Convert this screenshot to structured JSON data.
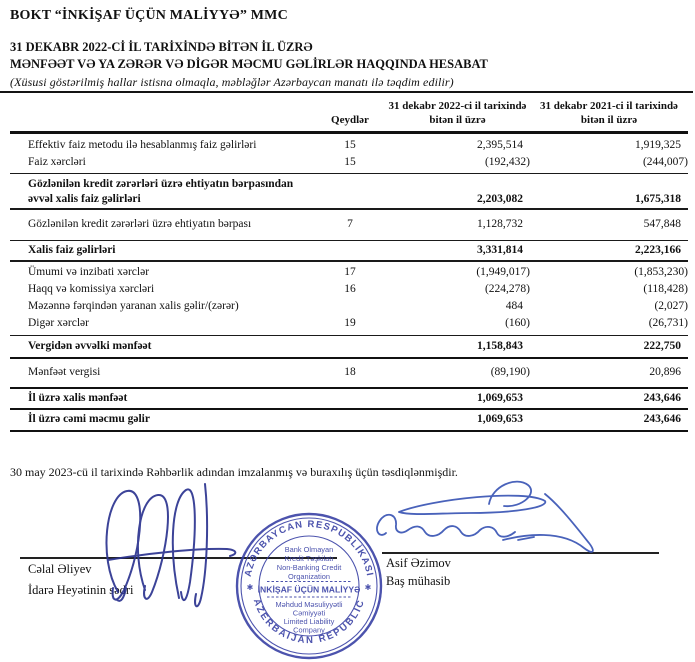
{
  "page": {
    "company": "BOKT “İNKİŞAF ÜÇÜN MALİYYƏ” MMC",
    "title_line1": "31 DEKABR 2022-Cİ İL TARİXİNDƏ BİTƏN İL ÜZRƏ",
    "title_line2": "MƏNFƏƏT VƏ YA ZƏRƏR VƏ DİGƏR MƏCMU GƏLİRLƏR HAQQINDA HESABAT",
    "note": "(Xüsusi göstərilmiş hallar istisna olmaqla, məbləğlər Azərbaycan manatı ilə təqdim edilir)"
  },
  "table": {
    "headers": {
      "notes": "Qeydlər",
      "y2022": "31 dekabr 2022-ci il tarixində bitən il üzrə",
      "y2021": "31 dekabr 2021-ci il tarixində bitən il üzrə"
    },
    "rows": [
      {
        "label": "Effektiv faiz metodu ilə hesablanmış faiz gəlirləri",
        "note": "15",
        "v2022": "2,395,514",
        "v2021": "1,919,325",
        "bold": false,
        "rule_after": false
      },
      {
        "label": "Faiz xərcləri",
        "note": "15",
        "v2022": "(192,432)",
        "v2021": "(244,007)",
        "bold": false,
        "rule_after": true
      },
      {
        "label": "Gözlənilən kredit zərərləri üzrə ehtiyatın bərpasından əvvəl xalis faiz gəlirləri",
        "note": "",
        "v2022": "2,203,082",
        "v2021": "1,675,318",
        "bold": true,
        "rule_after": true
      },
      {
        "label": "Gözlənilən kredit zərərləri üzrə ehtiyatın bərpası",
        "note": "7",
        "v2022": "1,128,732",
        "v2021": "547,848",
        "bold": false,
        "rule_after": true
      },
      {
        "label": "Xalis faiz gəlirləri",
        "note": "",
        "v2022": "3,331,814",
        "v2021": "2,223,166",
        "bold": true,
        "rule_after": true
      },
      {
        "label": "Ümumi və inzibati xərclər",
        "note": "17",
        "v2022": "(1,949,017)",
        "v2021": "(1,853,230)",
        "bold": false,
        "rule_after": false
      },
      {
        "label": "Haqq və komissiya xərcləri",
        "note": "16",
        "v2022": "(224,278)",
        "v2021": "(118,428)",
        "bold": false,
        "rule_after": false
      },
      {
        "label": "Məzənnə fərqindən yaranan xalis gəlir/(zərər)",
        "note": "",
        "v2022": "484",
        "v2021": "(2,027)",
        "bold": false,
        "rule_after": false
      },
      {
        "label": "Digər xərclər",
        "note": "19",
        "v2022": "(160)",
        "v2021": "(26,731)",
        "bold": false,
        "rule_after": true
      },
      {
        "label": "Vergidən əvvəlki mənfəət",
        "note": "",
        "v2022": "1,158,843",
        "v2021": "222,750",
        "bold": true,
        "rule_after": true
      },
      {
        "label": "Mənfəət vergisi",
        "note": "18",
        "v2022": "(89,190)",
        "v2021": "20,896",
        "bold": false,
        "rule_after": true
      },
      {
        "label": "İl üzrə xalis mənfəət",
        "note": "",
        "v2022": "1,069,653",
        "v2021": "243,646",
        "bold": true,
        "rule_after": true
      },
      {
        "label": "İl üzrə cəmi məcmu gəlir",
        "note": "",
        "v2022": "1,069,653",
        "v2021": "243,646",
        "bold": true,
        "rule_after": true
      }
    ]
  },
  "footer": {
    "approval": "30 may 2023-cü il tarixində Rəhbərlik adından imzalanmış və buraxılış üçün təsdiqlənmişdir.",
    "signer_left": {
      "name": "Cəlal Əliyev",
      "title": "İdarə Heyətinin sədri"
    },
    "signer_right": {
      "name": "Asif Əzimov",
      "title": "Baş mühasib"
    }
  },
  "stamp": {
    "ring_top": "AZƏRBAYCAN RESPUBLİKASI",
    "ring_bottom": "AZERBAIJAN REPUBLIC",
    "org_line1": "Bank Olmayan",
    "org_line2": "Kredit Təşkilatı",
    "org_line3": "Non-Banking Credit",
    "org_line4": "Organization",
    "company": "İNKİŞAF ÜÇÜN MALİYYƏ",
    "star_left": "✱",
    "star_right": "✱",
    "type_line1": "Məhdud Məsuliyyətli",
    "type_line2": "Cəmiyyəti",
    "type_line3": "Limited Liability",
    "type_line4": "Company"
  },
  "colors": {
    "stamp_blue": "#3941a5",
    "ink_left": "#2c3490",
    "ink_right": "#3a55b5",
    "rule_black": "#141414"
  }
}
